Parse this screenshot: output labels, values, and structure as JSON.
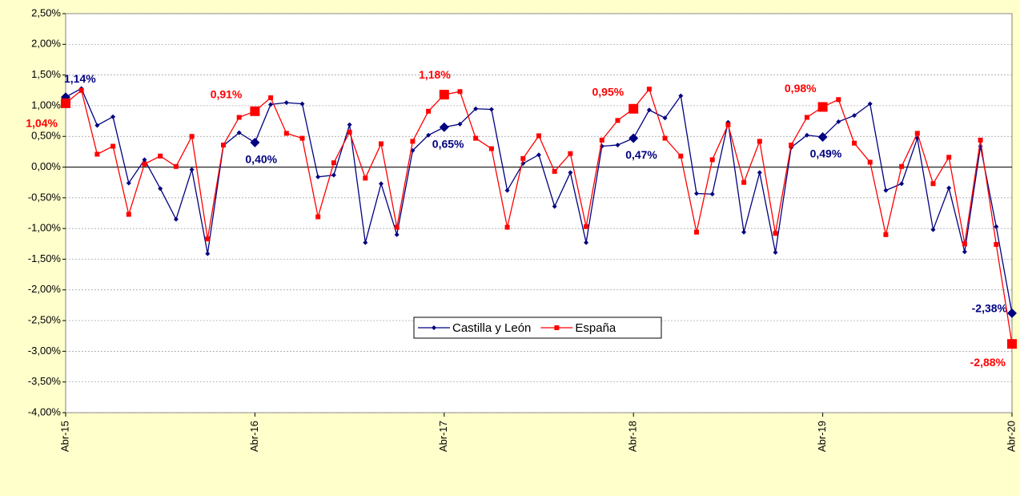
{
  "chart_data": {
    "type": "line",
    "categories": [
      "Abr-15",
      null,
      null,
      null,
      null,
      null,
      null,
      null,
      null,
      null,
      null,
      null,
      "Abr-16",
      null,
      null,
      null,
      null,
      null,
      null,
      null,
      null,
      null,
      null,
      null,
      "Abr-17",
      null,
      null,
      null,
      null,
      null,
      null,
      null,
      null,
      null,
      null,
      null,
      "Abr-18",
      null,
      null,
      null,
      null,
      null,
      null,
      null,
      null,
      null,
      null,
      null,
      "Abr-19",
      null,
      null,
      null,
      null,
      null,
      null,
      null,
      null,
      null,
      null,
      null,
      "Abr-20"
    ],
    "series": [
      {
        "name": "Castilla y León",
        "color": "#000080",
        "values": [
          1.14,
          1.28,
          0.68,
          0.82,
          -0.26,
          0.12,
          -0.35,
          -0.85,
          -0.04,
          -1.41,
          0.35,
          0.56,
          0.4,
          1.02,
          1.05,
          1.03,
          -0.16,
          -0.13,
          0.69,
          -1.23,
          -0.27,
          -1.1,
          0.27,
          0.52,
          0.65,
          0.7,
          0.95,
          0.94,
          -0.38,
          0.06,
          0.2,
          -0.64,
          -0.09,
          -1.23,
          0.34,
          0.36,
          0.47,
          0.93,
          0.8,
          1.16,
          -0.43,
          -0.44,
          0.73,
          -1.06,
          -0.09,
          -1.39,
          0.32,
          0.52,
          0.49,
          0.74,
          0.84,
          1.03,
          -0.38,
          -0.27,
          0.47,
          -1.02,
          -0.34,
          -1.38,
          0.34,
          -0.97,
          -2.38
        ],
        "value_labels": [
          "1,14%",
          null,
          null,
          null,
          null,
          null,
          null,
          null,
          null,
          null,
          null,
          null,
          "0,40%",
          null,
          null,
          null,
          null,
          null,
          null,
          null,
          null,
          null,
          null,
          null,
          "0,65%",
          null,
          null,
          null,
          null,
          null,
          null,
          null,
          null,
          null,
          null,
          null,
          "0,47%",
          null,
          null,
          null,
          null,
          null,
          null,
          null,
          null,
          null,
          null,
          null,
          "0,49%",
          null,
          null,
          null,
          null,
          null,
          null,
          null,
          null,
          null,
          null,
          null,
          "-2,38%"
        ]
      },
      {
        "name": "España",
        "color": "#ff0000",
        "values": [
          1.04,
          1.25,
          0.21,
          0.34,
          -0.77,
          0.05,
          0.18,
          0.01,
          0.5,
          -1.17,
          0.36,
          0.81,
          0.91,
          1.13,
          0.55,
          0.47,
          -0.81,
          0.07,
          0.57,
          -0.18,
          0.38,
          -0.98,
          0.42,
          0.91,
          1.18,
          1.23,
          0.47,
          0.3,
          -0.98,
          0.14,
          0.51,
          -0.07,
          0.22,
          -0.97,
          0.44,
          0.76,
          0.95,
          1.27,
          0.47,
          0.18,
          -1.06,
          0.12,
          0.69,
          -0.25,
          0.42,
          -1.08,
          0.36,
          0.81,
          0.98,
          1.1,
          0.39,
          0.08,
          -1.1,
          0.01,
          0.55,
          -0.27,
          0.16,
          -1.25,
          0.44,
          -1.26,
          -2.88
        ],
        "value_labels": [
          "1,04%",
          null,
          null,
          null,
          null,
          null,
          null,
          null,
          null,
          null,
          null,
          null,
          "0,91%",
          null,
          null,
          null,
          null,
          null,
          null,
          null,
          null,
          null,
          null,
          null,
          "1,18%",
          null,
          null,
          null,
          null,
          null,
          null,
          null,
          null,
          null,
          null,
          null,
          "0,95%",
          null,
          null,
          null,
          null,
          null,
          null,
          null,
          null,
          null,
          null,
          null,
          "0,98%",
          null,
          null,
          null,
          null,
          null,
          null,
          null,
          null,
          null,
          null,
          null,
          "-2,88%"
        ]
      }
    ],
    "ylim": [
      -4,
      2.5
    ],
    "yticks": [
      {
        "value": -4,
        "label": "-4,00%"
      },
      {
        "value": -3.5,
        "label": "-3,50%"
      },
      {
        "value": -3,
        "label": "-3,00%"
      },
      {
        "value": -2.5,
        "label": "-2,50%"
      },
      {
        "value": -2,
        "label": "-2,00%"
      },
      {
        "value": -1.5,
        "label": "-1,50%"
      },
      {
        "value": -1,
        "label": "-1,00%"
      },
      {
        "value": -0.5,
        "label": "-0,50%"
      },
      {
        "value": 0,
        "label": "0,00%"
      },
      {
        "value": 0.5,
        "label": "0,50%"
      },
      {
        "value": 1,
        "label": "1,00%"
      },
      {
        "value": 1.5,
        "label": "1,50%"
      },
      {
        "value": 2,
        "label": "2,00%"
      },
      {
        "value": 2.5,
        "label": "2,50%"
      }
    ],
    "grid": true,
    "legend": "bottom"
  }
}
